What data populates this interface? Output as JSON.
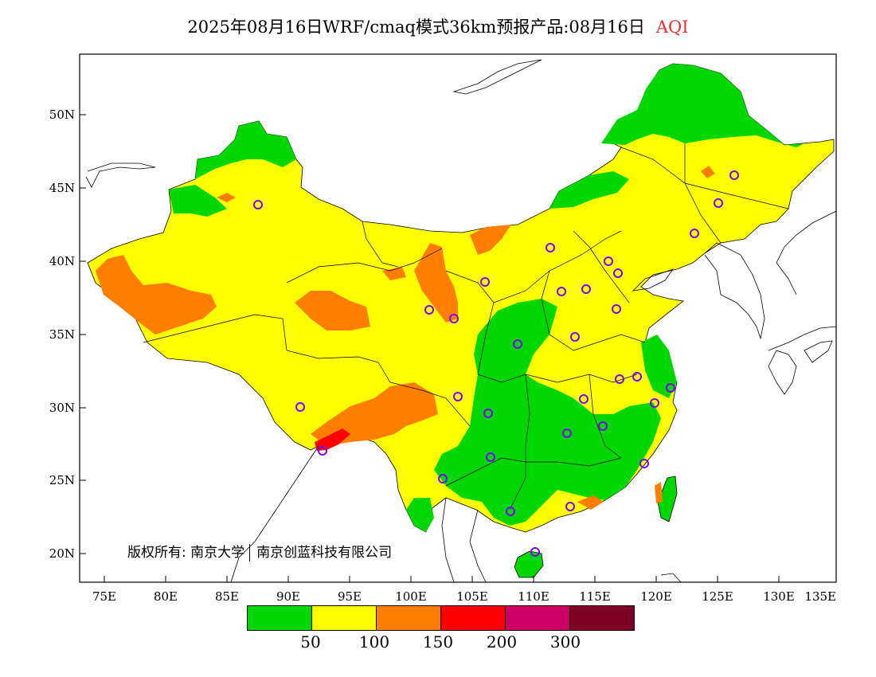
{
  "title": {
    "main": "2025年08月16日WRF/cmaq模式36km预报产品:08月16日",
    "variable": "AQI"
  },
  "axes": {
    "lat_labels": [
      "50N",
      "45N",
      "40N",
      "35N",
      "30N",
      "25N",
      "20N"
    ],
    "lon_labels": [
      "75E",
      "80E",
      "85E",
      "90E",
      "95E",
      "100E",
      "105E",
      "110E",
      "115E",
      "120E",
      "125E",
      "130E",
      "135E"
    ]
  },
  "copyright": {
    "label": "版权所有:",
    "org1": "南京大学",
    "org2": "南京创蓝科技有限公司"
  },
  "colorbar": {
    "colors": [
      "#00d700",
      "#ffff00",
      "#ff7e00",
      "#ff0000",
      "#cc0066",
      "#7e0023"
    ],
    "labels": [
      "50",
      "100",
      "150",
      "200",
      "300"
    ]
  },
  "colors": {
    "good": "#00d700",
    "moderate": "#ffff00",
    "sensitive": "#ff7e00",
    "unhealthy": "#ff0000",
    "station_marker": "#8000ff"
  }
}
